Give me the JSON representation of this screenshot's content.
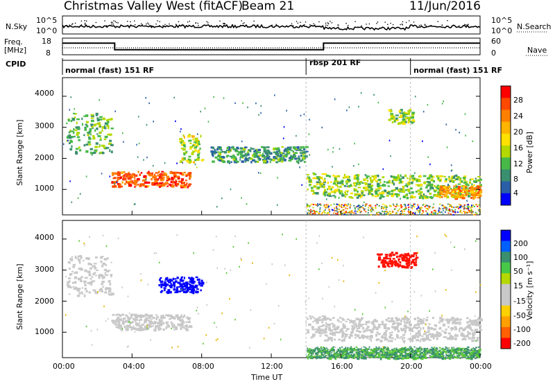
{
  "header": {
    "station": "Christmas Valley West (fitACF)",
    "beam": "Beam 21",
    "date": "11/Jun/2016"
  },
  "nsky_panel": {
    "left_label": "N.Sky",
    "right_label": "N.Search",
    "left_ticks": [
      "10^5",
      "10^0"
    ],
    "right_ticks": [
      "10^5",
      "10^0"
    ]
  },
  "freq_panel": {
    "left_label_1": "Freq.",
    "left_label_2": "[MHz]",
    "right_label": "Nave",
    "left_ticks": [
      "18",
      "8"
    ],
    "right_ticks": [
      "60",
      "0"
    ]
  },
  "cpid_panel": {
    "label": "CPID",
    "segments": [
      {
        "label": "normal (fast) 151 RF",
        "start_hour": 0,
        "end_hour": 14
      },
      {
        "label": "rbsp 201 RF",
        "start_hour": 14,
        "end_hour": 20
      },
      {
        "label": "normal (fast) 151 RF",
        "start_hour": 20,
        "end_hour": 24
      }
    ]
  },
  "power_panel": {
    "ylabel": "Slant Range [km]",
    "colorbar_label": "Power [dB]",
    "colorbar_ticks": [
      "28",
      "24",
      "20",
      "16",
      "12",
      "8",
      "4"
    ],
    "colorbar_colors": [
      "#ff0000",
      "#ff4800",
      "#ff7f00",
      "#ffb400",
      "#ffe000",
      "#b4d800",
      "#48b848",
      "#3a8f6f",
      "#2a5fa8",
      "#0000ff"
    ]
  },
  "velocity_panel": {
    "ylabel": "Slant Range [km]",
    "colorbar_label": "Velocity [m s⁻¹]",
    "colorbar_ticks": [
      "200",
      "100",
      "50",
      "15",
      "-15",
      "-50",
      "-100",
      "-200"
    ],
    "colorbar_colors": [
      "#0000ff",
      "#0060ff",
      "#3a8f6f",
      "#48c848",
      "#b4d800",
      "#c8c8c8",
      "#c8c8c8",
      "#ffd000",
      "#ffa000",
      "#ff6000",
      "#ff0000"
    ]
  },
  "x_axis": {
    "label": "Time UT",
    "ticks": [
      "00:00",
      "04:00",
      "08:00",
      "12:00",
      "16:00",
      "20:00",
      "00:00"
    ]
  },
  "y_axis_ticks": [
    "4000",
    "3000",
    "2000",
    "1000"
  ],
  "chart_data": [
    {
      "type": "heatmap",
      "title": "Christmas Valley West (fitACF) Beam 21 11/Jun/2016",
      "xlabel": "Time UT",
      "ylabel": "Slant Range [km]",
      "xlim_hours": [
        0,
        24
      ],
      "ylim_km": [
        180,
        4600
      ],
      "colorbar": "Power [dB]",
      "clim": [
        0,
        30
      ],
      "echo_regions": [
        {
          "start_hour": 0.2,
          "end_hour": 2.8,
          "range_km": [
            2200,
            3500
          ],
          "power_db": 10
        },
        {
          "start_hour": 2.8,
          "end_hour": 7.3,
          "range_km": [
            1100,
            1600
          ],
          "power_db": 26
        },
        {
          "start_hour": 6.7,
          "end_hour": 8.0,
          "range_km": [
            1900,
            2800
          ],
          "power_db": 14
        },
        {
          "start_hour": 8.5,
          "end_hour": 14.0,
          "range_km": [
            1900,
            2400
          ],
          "power_db": 8
        },
        {
          "start_hour": 14.0,
          "end_hour": 15.0,
          "range_km": [
            850,
            1550
          ],
          "power_db": 12
        },
        {
          "start_hour": 15.0,
          "end_hour": 24.0,
          "range_km": [
            750,
            1500
          ],
          "power_db": 12
        },
        {
          "start_hour": 18.7,
          "end_hour": 20.1,
          "range_km": [
            3150,
            3600
          ],
          "power_db": 12
        },
        {
          "start_hour": 21.5,
          "end_hour": 24.0,
          "range_km": [
            750,
            1150
          ],
          "power_db": 22
        }
      ]
    },
    {
      "type": "heatmap",
      "xlabel": "Time UT",
      "ylabel": "Slant Range [km]",
      "xlim_hours": [
        0,
        24
      ],
      "ylim_km": [
        180,
        4600
      ],
      "colorbar": "Velocity [m s⁻¹]",
      "clim": [
        -200,
        200
      ],
      "echo_regions": [
        {
          "start_hour": 0.2,
          "end_hour": 2.8,
          "range_km": [
            2200,
            3500
          ],
          "velocity": 0
        },
        {
          "start_hour": 2.8,
          "end_hour": 7.3,
          "range_km": [
            1100,
            1600
          ],
          "velocity": 0
        },
        {
          "start_hour": 5.5,
          "end_hour": 8.0,
          "range_km": [
            2300,
            2800
          ],
          "velocity": 180
        },
        {
          "start_hour": 14.0,
          "end_hour": 15.0,
          "range_km": [
            850,
            1550
          ],
          "velocity": 0
        },
        {
          "start_hour": 15.0,
          "end_hour": 24.0,
          "range_km": [
            750,
            1500
          ],
          "velocity": 0
        },
        {
          "start_hour": 14.0,
          "end_hour": 24.0,
          "range_km": [
            180,
            500
          ],
          "velocity": 30
        },
        {
          "start_hour": 18.0,
          "end_hour": 20.3,
          "range_km": [
            3100,
            3600
          ],
          "velocity": -150
        }
      ]
    },
    {
      "type": "line",
      "ylabel": "Freq. [MHz]",
      "x_hours": [
        0,
        3,
        3,
        15,
        15,
        24
      ],
      "freq_mhz": [
        15,
        15,
        11,
        11,
        15,
        15
      ]
    }
  ]
}
